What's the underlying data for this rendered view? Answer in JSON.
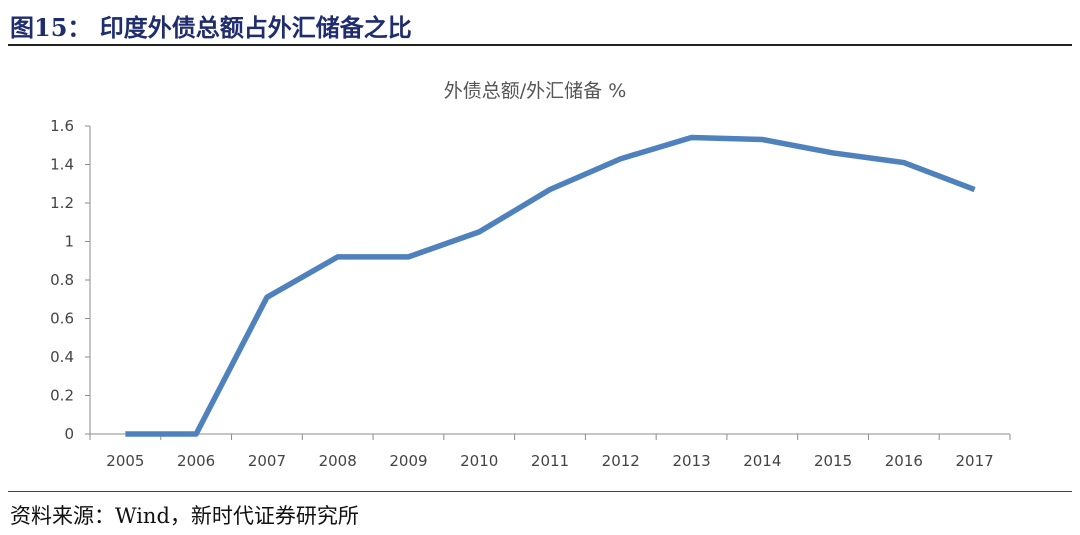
{
  "figure": {
    "title": "图15：  印度外债总额占外汇储备之比",
    "source": "资料来源：Wind，新时代证券研究所"
  },
  "colors": {
    "line": "#4f81bd",
    "axis": "#8c8c8c",
    "title": "#1f2d6e"
  },
  "chart_data": {
    "type": "line",
    "title": "外债总额/外汇储备 %",
    "xlabel": "",
    "ylabel": "",
    "categories": [
      "2005",
      "2006",
      "2007",
      "2008",
      "2009",
      "2010",
      "2011",
      "2012",
      "2013",
      "2014",
      "2015",
      "2016",
      "2017"
    ],
    "series": [
      {
        "name": "外债总额/外汇储备 %",
        "values": [
          0,
          0,
          0.71,
          0.92,
          0.92,
          1.05,
          1.27,
          1.43,
          1.54,
          1.53,
          1.46,
          1.41,
          1.27
        ]
      }
    ],
    "ylim": [
      0,
      1.6
    ],
    "yticks": [
      "0",
      "0.2",
      "0.4",
      "0.6",
      "0.8",
      "1",
      "1.2",
      "1.4",
      "1.6"
    ],
    "grid": false,
    "legend": "none"
  }
}
